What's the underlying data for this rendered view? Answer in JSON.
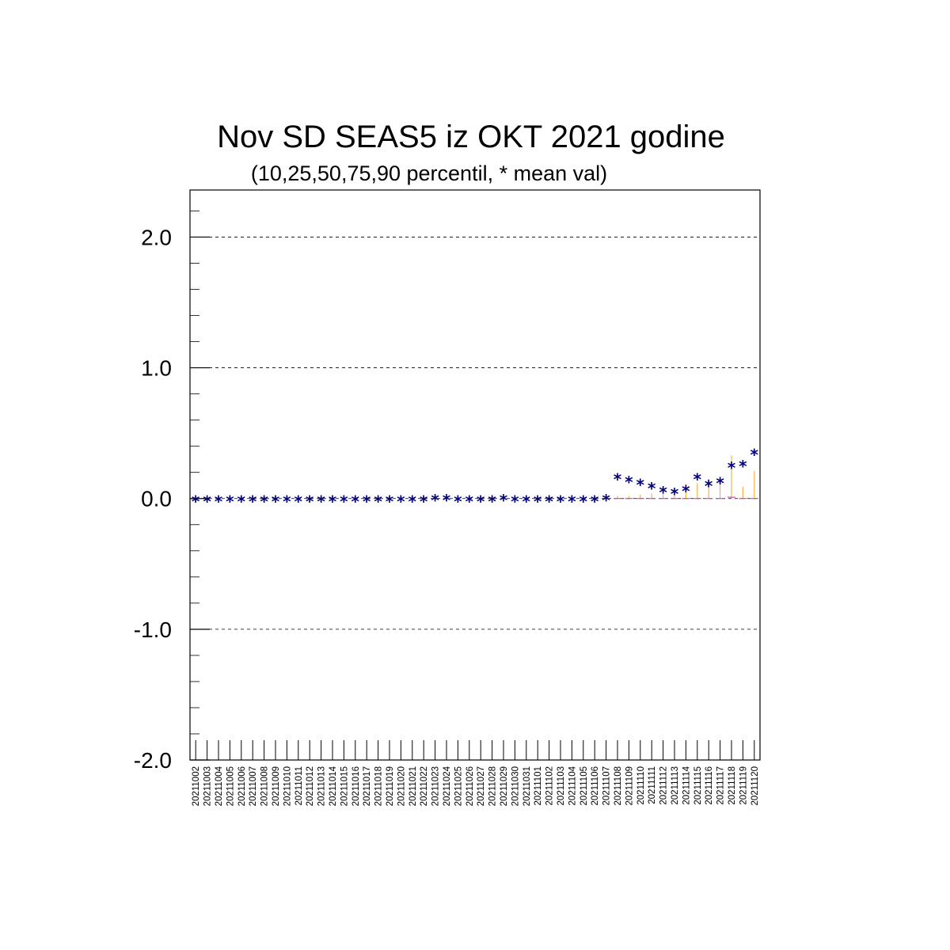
{
  "chart_data": {
    "type": "scatter",
    "title": "Nov SD SEAS5 iz OKT 2021 godine",
    "subtitle": "(10,25,50,75,90 percentil, * mean val)",
    "xlabel": "",
    "ylabel": "",
    "ylim": [
      -2.0,
      2.36
    ],
    "ytick_labels": [
      "2.0",
      "1.0",
      "0.0",
      "-1.0",
      "-2.0"
    ],
    "ytick_values": [
      2.0,
      1.0,
      0.0,
      -1.0,
      -2.0
    ],
    "grid": "dashed horizontal at major ticks",
    "categories": [
      "20211002",
      "20211003",
      "20211004",
      "20211005",
      "20211006",
      "20211007",
      "20211008",
      "20211009",
      "20211010",
      "20211011",
      "20211012",
      "20211013",
      "20211014",
      "20211015",
      "20211016",
      "20211017",
      "20211018",
      "20211019",
      "20211020",
      "20211021",
      "20211022",
      "20211023",
      "20211024",
      "20211025",
      "20211026",
      "20211027",
      "20211028",
      "20211029",
      "20211030",
      "20211031",
      "20211101",
      "20211102",
      "20211103",
      "20211104",
      "20211105",
      "20211106",
      "20211107",
      "20211108",
      "20211109",
      "20211110",
      "20211111",
      "20211112",
      "20211113",
      "20211114",
      "20211115",
      "20211116",
      "20211117",
      "20211118",
      "20211119",
      "20211120"
    ],
    "series": [
      {
        "values": [
          0,
          0,
          0,
          0,
          0,
          0,
          0,
          0,
          0,
          0,
          0,
          0,
          0,
          0,
          0,
          0,
          0,
          0,
          0,
          0,
          0,
          0.01,
          0.01,
          0,
          0,
          0,
          0,
          0.01,
          0,
          0,
          0,
          0,
          0,
          0,
          0,
          0,
          0.01,
          0.17,
          0.15,
          0.13,
          0.1,
          0.07,
          0.06,
          0.08,
          0.17,
          0.12,
          0.14,
          0.26,
          0.27,
          0.36
        ]
      },
      {
        "values": [
          0,
          0,
          0,
          0,
          0,
          0,
          0,
          0,
          0,
          0,
          0,
          0,
          0,
          0,
          0,
          0,
          0,
          0,
          0,
          0,
          0,
          0,
          0,
          0,
          0,
          0,
          0,
          0,
          0,
          0,
          0,
          0,
          0,
          0,
          0,
          0,
          0,
          0.02,
          0.02,
          0.03,
          0.04,
          0.05,
          0.06,
          0.11,
          0.12,
          0.15,
          0.12,
          0.33,
          0.09,
          0.21
        ]
      },
      {
        "values": [
          0,
          0,
          0,
          0,
          0,
          0,
          0,
          0,
          0,
          0,
          0,
          0,
          0,
          0,
          0,
          0,
          0,
          0,
          0,
          0,
          0,
          0,
          0,
          0,
          0,
          0,
          0,
          0,
          0,
          0,
          0,
          0,
          0,
          0,
          0,
          0,
          0,
          0,
          0,
          0,
          0,
          0,
          0,
          0,
          0,
          0,
          0,
          0.01,
          0,
          0
        ]
      }
    ],
    "colors": {
      "mean": "#00007a",
      "percentile": "#f5a623",
      "median": "#c030c0",
      "grid": "#000000"
    }
  }
}
